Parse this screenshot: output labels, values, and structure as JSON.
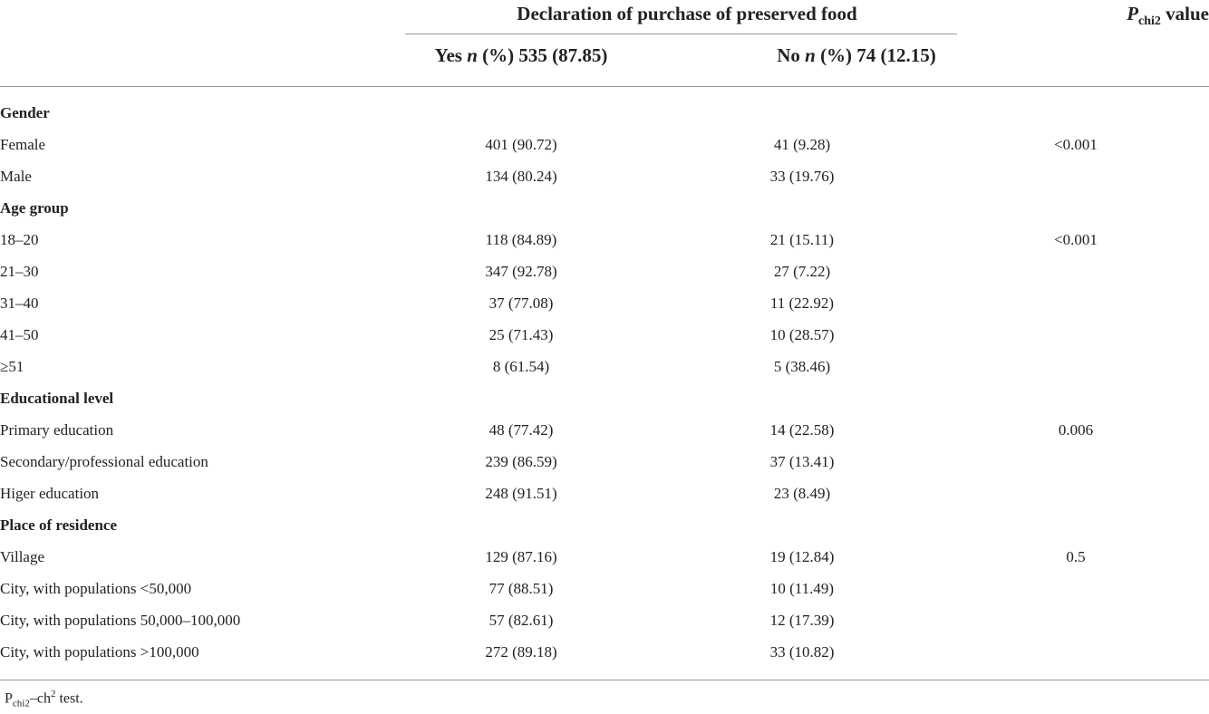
{
  "header": {
    "group_title": "Declaration of purchase of preserved food",
    "p_main": "P",
    "p_sub": "chi2",
    "p_rest": " value",
    "yes_prefix": "Yes ",
    "yes_n": "n",
    "yes_rest": " (%) 535 (87.85)",
    "no_prefix": "No ",
    "no_n": "n",
    "no_rest": " (%) 74 (12.15)"
  },
  "rows": [
    {
      "label": "Gender",
      "section": true,
      "yes": "",
      "no": "",
      "p": ""
    },
    {
      "label": "Female",
      "section": false,
      "yes": "401 (90.72)",
      "no": "41 (9.28)",
      "p": "<0.001"
    },
    {
      "label": "Male",
      "section": false,
      "yes": "134 (80.24)",
      "no": "33 (19.76)",
      "p": ""
    },
    {
      "label": "Age group",
      "section": true,
      "yes": "",
      "no": "",
      "p": ""
    },
    {
      "label": "18–20",
      "section": false,
      "yes": "118 (84.89)",
      "no": "21 (15.11)",
      "p": "<0.001"
    },
    {
      "label": "21–30",
      "section": false,
      "yes": "347 (92.78)",
      "no": "27 (7.22)",
      "p": ""
    },
    {
      "label": "31–40",
      "section": false,
      "yes": "37 (77.08)",
      "no": "11 (22.92)",
      "p": ""
    },
    {
      "label": "41–50",
      "section": false,
      "yes": "25 (71.43)",
      "no": "10 (28.57)",
      "p": ""
    },
    {
      "label": "≥51",
      "section": false,
      "yes": "8 (61.54)",
      "no": "5 (38.46)",
      "p": ""
    },
    {
      "label": "Educational level",
      "section": true,
      "yes": "",
      "no": "",
      "p": ""
    },
    {
      "label": "Primary education",
      "section": false,
      "yes": "48 (77.42)",
      "no": "14 (22.58)",
      "p": "0.006"
    },
    {
      "label": "Secondary/professional education",
      "section": false,
      "yes": "239 (86.59)",
      "no": "37 (13.41)",
      "p": ""
    },
    {
      "label": "Higer education",
      "section": false,
      "yes": "248 (91.51)",
      "no": "23 (8.49)",
      "p": ""
    },
    {
      "label": "Place of residence",
      "section": true,
      "yes": "",
      "no": "",
      "p": ""
    },
    {
      "label": "Village",
      "section": false,
      "yes": "129 (87.16)",
      "no": "19 (12.84)",
      "p": "0.5"
    },
    {
      "label": "City, with populations <50,000",
      "section": false,
      "yes": "77 (88.51)",
      "no": "10 (11.49)",
      "p": ""
    },
    {
      "label": "City, with populations 50,000–100,000",
      "section": false,
      "yes": "57 (82.61)",
      "no": "12 (17.39)",
      "p": ""
    },
    {
      "label": "City, with populations >100,000",
      "section": false,
      "yes": "272 (89.18)",
      "no": "33 (10.82)",
      "p": ""
    }
  ],
  "footnote": {
    "p": "P",
    "p_sub": "chi2",
    "dash_ch": "–ch",
    "sup": "2",
    "rest": " test."
  }
}
